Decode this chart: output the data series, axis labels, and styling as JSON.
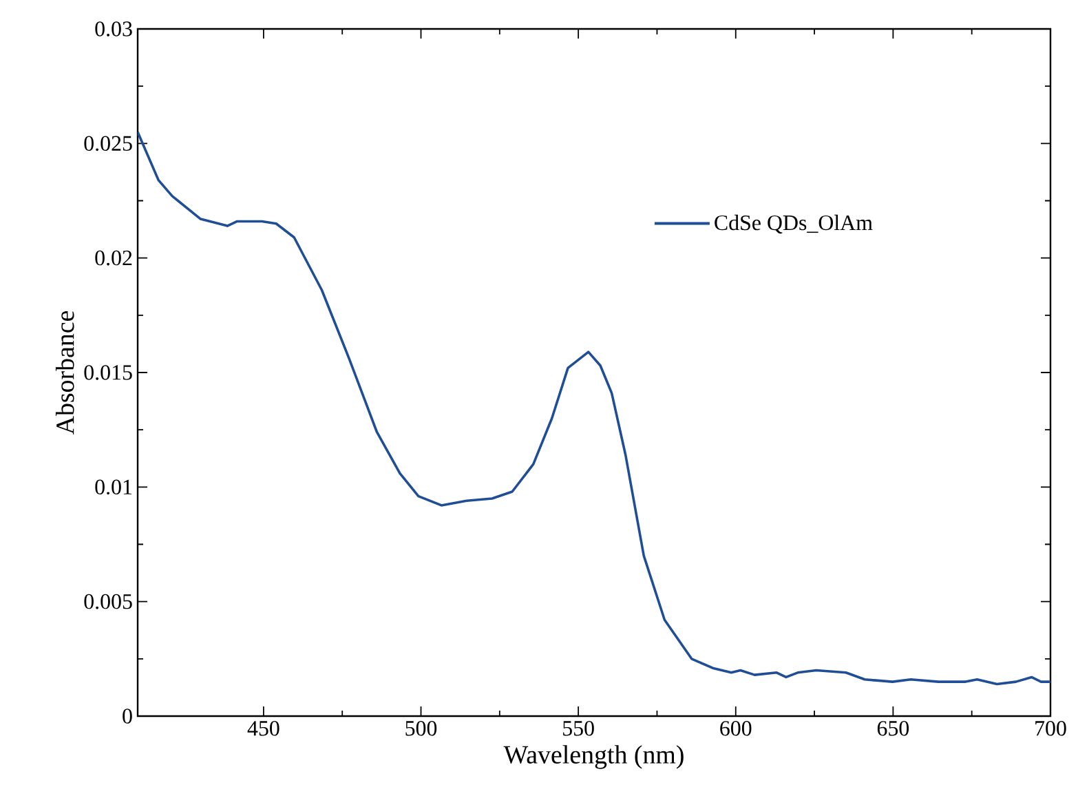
{
  "chart_data": {
    "type": "line",
    "xlabel": "Wavelength (nm)",
    "ylabel": "Absorbance",
    "xlim": [
      410,
      700
    ],
    "ylim": [
      0,
      0.03
    ],
    "xticks": [
      450,
      500,
      550,
      600,
      650,
      700
    ],
    "yticks": [
      0,
      0.005,
      0.01,
      0.015,
      0.02,
      0.025,
      0.03
    ],
    "legend": "top right",
    "grid": false,
    "marker": "none",
    "line_style": "solid",
    "series": [
      {
        "name": "CdSe QDs_OlAm",
        "color": "#1f4e96",
        "x": [
          410,
          416.6,
          421,
          430,
          438.5,
          441.6,
          449.5,
          454,
          459.7,
          468.5,
          477.2,
          486,
          493.3,
          499.2,
          506.5,
          514.5,
          522.6,
          529,
          535.7,
          541.6,
          546.7,
          553.2,
          557,
          560.6,
          565,
          570.8,
          577.4,
          586,
          592.7,
          598.6,
          601.5,
          606,
          613,
          616,
          619.7,
          625.6,
          635,
          641,
          649.8,
          655.6,
          664.4,
          673,
          676.7,
          683,
          689,
          694,
          697,
          700
        ],
        "values": [
          0.0255,
          0.0234,
          0.0227,
          0.0217,
          0.0214,
          0.0216,
          0.0216,
          0.0215,
          0.0209,
          0.0186,
          0.0156,
          0.0124,
          0.0106,
          0.0096,
          0.0092,
          0.0094,
          0.0095,
          0.0098,
          0.011,
          0.013,
          0.0152,
          0.0159,
          0.0153,
          0.0141,
          0.0114,
          0.007,
          0.0042,
          0.0025,
          0.0021,
          0.0019,
          0.002,
          0.0018,
          0.0019,
          0.0017,
          0.0019,
          0.002,
          0.0019,
          0.0016,
          0.0015,
          0.0016,
          0.0015,
          0.0015,
          0.0016,
          0.0014,
          0.0015,
          0.0017,
          0.0015,
          0.0015
        ]
      }
    ]
  }
}
